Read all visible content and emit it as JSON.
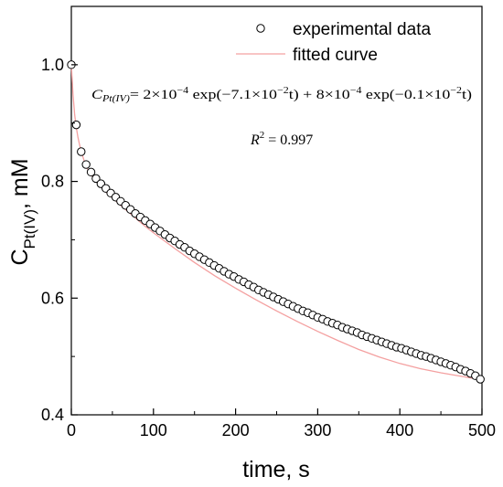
{
  "chart_data": {
    "type": "scatter",
    "xlabel": "time, s",
    "ylabel_main": "C",
    "ylabel_sub": "Pt(IV)",
    "ylabel_unit": ", mM",
    "xlim": [
      0,
      500
    ],
    "ylim": [
      0.4,
      1.1
    ],
    "x_ticks": [
      0,
      100,
      200,
      300,
      400,
      500
    ],
    "x_tick_labels": [
      "0",
      "100",
      "200",
      "300",
      "400",
      "500"
    ],
    "y_ticks": [
      0.4,
      0.6,
      0.8,
      1.0
    ],
    "y_tick_labels": [
      "0.4",
      "0.6",
      "0.8",
      "1.0"
    ],
    "grid": false,
    "legend_position": "top-right",
    "series": [
      {
        "name": "experimental data",
        "kind": "scatter",
        "marker": "open-circle",
        "x": [
          0,
          6,
          12,
          18,
          24,
          30,
          36,
          42,
          48,
          54,
          60,
          66,
          72,
          78,
          84,
          90,
          96,
          102,
          108,
          114,
          120,
          126,
          132,
          138,
          144,
          150,
          156,
          162,
          168,
          174,
          180,
          186,
          192,
          198,
          204,
          210,
          216,
          222,
          228,
          234,
          240,
          246,
          252,
          258,
          264,
          270,
          276,
          282,
          288,
          294,
          300,
          306,
          312,
          318,
          324,
          330,
          336,
          342,
          348,
          354,
          360,
          366,
          372,
          378,
          384,
          390,
          396,
          402,
          408,
          414,
          420,
          426,
          432,
          438,
          444,
          450,
          456,
          462,
          468,
          474,
          480,
          486,
          492,
          498
        ],
        "y": [
          1.0,
          0.897,
          0.851,
          0.829,
          0.816,
          0.805,
          0.796,
          0.788,
          0.78,
          0.773,
          0.766,
          0.759,
          0.752,
          0.745,
          0.739,
          0.733,
          0.727,
          0.721,
          0.715,
          0.709,
          0.703,
          0.698,
          0.692,
          0.687,
          0.681,
          0.676,
          0.671,
          0.666,
          0.661,
          0.656,
          0.651,
          0.646,
          0.641,
          0.637,
          0.632,
          0.628,
          0.623,
          0.619,
          0.614,
          0.61,
          0.606,
          0.602,
          0.598,
          0.594,
          0.59,
          0.586,
          0.582,
          0.578,
          0.575,
          0.571,
          0.567,
          0.564,
          0.56,
          0.557,
          0.554,
          0.55,
          0.547,
          0.544,
          0.541,
          0.537,
          0.534,
          0.531,
          0.528,
          0.525,
          0.522,
          0.519,
          0.516,
          0.514,
          0.511,
          0.508,
          0.505,
          0.502,
          0.5,
          0.497,
          0.494,
          0.491,
          0.488,
          0.485,
          0.482,
          0.478,
          0.475,
          0.471,
          0.467,
          0.461
        ],
        "color": "#000000"
      },
      {
        "name": "fitted curve",
        "kind": "line",
        "color": "#f4a0a0",
        "x": [
          0,
          2,
          4,
          6,
          8,
          10,
          12,
          15,
          18,
          21,
          24,
          28,
          32,
          36,
          40,
          45,
          50,
          60,
          70,
          80,
          90,
          100,
          125,
          150,
          175,
          200,
          225,
          250,
          275,
          300,
          325,
          350,
          375,
          400,
          425,
          450,
          475,
          500
        ],
        "y": [
          1.0,
          0.95,
          0.915,
          0.893,
          0.876,
          0.863,
          0.852,
          0.838,
          0.826,
          0.818,
          0.812,
          0.804,
          0.797,
          0.791,
          0.785,
          0.778,
          0.772,
          0.759,
          0.747,
          0.735,
          0.723,
          0.712,
          0.686,
          0.661,
          0.638,
          0.617,
          0.597,
          0.578,
          0.56,
          0.543,
          0.527,
          0.512,
          0.499,
          0.488,
          0.479,
          0.472,
          0.466,
          0.46
        ]
      }
    ],
    "annotation_equation": {
      "lhs_main": "C",
      "lhs_sub": "Pt(IV)",
      "rhs": [
        {
          "t": "= 2×10",
          "sup": "−4"
        },
        {
          "t": " exp(−7.1×10",
          "sup": "−2"
        },
        {
          "t": "t) + 8×10",
          "sup": "−4"
        },
        {
          "t": " exp(−0.1×10",
          "sup": "−2"
        },
        {
          "t": "t)",
          "sup": ""
        }
      ]
    },
    "annotation_r2": {
      "main": "R",
      "sup": "2",
      "rest": " = 0.997"
    }
  }
}
